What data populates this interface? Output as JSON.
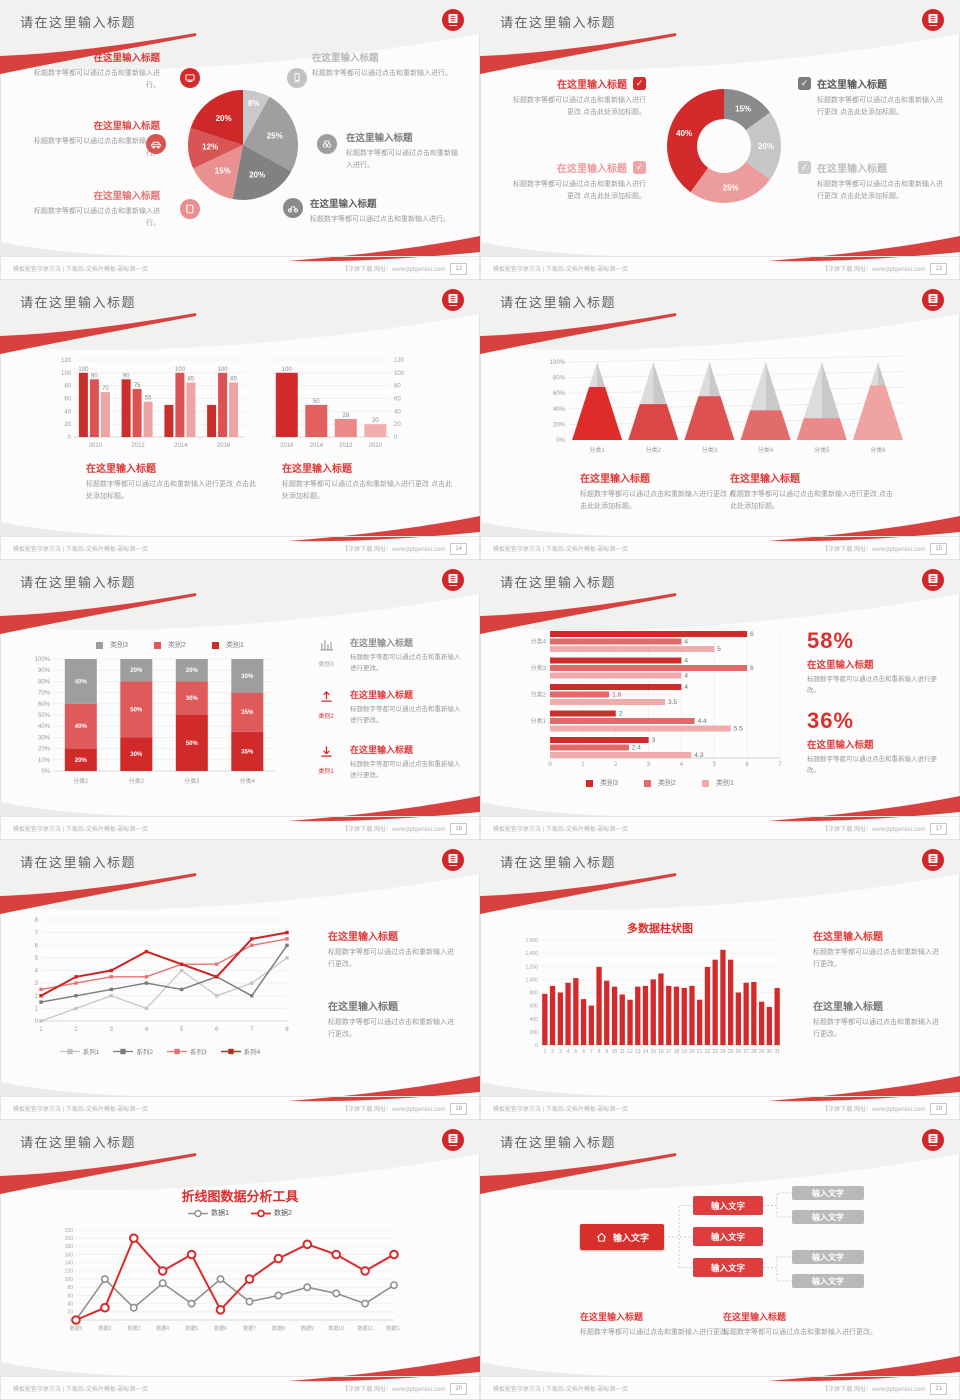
{
  "common": {
    "slide_title": "请在这里输入标题",
    "placeholder_title": "在这里输入标题",
    "footer_left": "模板配色字体方法 | 下载后-文档片模板-副标第一页",
    "footer_right": "【字体下载 网址：www.pptgenius.com",
    "accent_color": "#d32b2b"
  },
  "slides": [
    {
      "page_no": "12",
      "callouts_left": [
        {
          "icon": "monitor-icon",
          "title": "在这里输入标题",
          "body": "标题数字等都可以通过点击和重新输入进行。"
        },
        {
          "icon": "car-icon",
          "title": "在这里输入标题",
          "body": "标题数字等都可以通过点击和重新输入进行。"
        },
        {
          "icon": "book-icon",
          "title": "在这里输入标题",
          "body": "标题数字等都可以通过点击和重新输入进行。"
        }
      ],
      "callouts_right": [
        {
          "icon": "phone-icon",
          "title": "在这里输入标题",
          "body": "标题数字等都可以通过点击和重新输入进行。"
        },
        {
          "icon": "binoculars-icon",
          "title": "在这里输入标题",
          "body": "标题数字等都可以通过点击和重新输入进行。"
        },
        {
          "icon": "bicycle-icon",
          "title": "在这里输入标题",
          "body": "标题数字等都可以通过点击和重新输入进行。"
        }
      ],
      "chart_data": {
        "type": "pie",
        "labels": [
          "8%",
          "25%",
          "20%",
          "15%",
          "12%",
          "20%"
        ],
        "values": [
          8,
          25,
          20,
          15,
          12,
          20
        ],
        "colors": [
          "#c9c9c9",
          "#9f9f9f",
          "#818181",
          "#e99090",
          "#d95454",
          "#ce2828"
        ]
      }
    },
    {
      "page_no": "13",
      "items_left": [
        {
          "icon": "check-icon",
          "title": "在这里输入标题",
          "body": "标题数字等都可以通过点击和重新输入进行更改 点击此处添加标题。"
        },
        {
          "icon": "check-icon",
          "title": "在这里输入标题",
          "body": "标题数字等都可以通过点击和重新输入进行更改 点击此处添加标题。"
        }
      ],
      "items_right": [
        {
          "icon": "check-icon",
          "title": "在这里输入标题",
          "body": "标题数字等都可以通过点击和重新输入进行更改 点击此处添加标题。"
        },
        {
          "icon": "check-icon",
          "title": "在这里输入标题",
          "body": "标题数字等都可以通过点击和重新输入进行更改 点击此处添加标题。"
        }
      ],
      "chart_data": {
        "type": "donut",
        "labels": [
          "15%",
          "20%",
          "25%",
          "40%"
        ],
        "values": [
          15,
          20,
          25,
          40
        ],
        "colors": [
          "#8a8a8a",
          "#c6c6c6",
          "#ec9c9c",
          "#d32b2b"
        ]
      }
    },
    {
      "page_no": "14",
      "blocks": [
        {
          "title": "在这里输入标题",
          "body": "标题数字等都可以通过点击和重新输入进行更改 点击此处添加标题。"
        },
        {
          "title": "在这里输入标题",
          "body": "标题数字等都可以通过点击和重新输入进行更改 点击此处添加标题。"
        }
      ],
      "chart_data": [
        {
          "type": "bar-grouped",
          "categories": [
            "2010",
            "2012",
            "2014",
            "2016"
          ],
          "ymax": 120,
          "yticks": [
            "120",
            "100",
            "80",
            "60",
            "40",
            "20",
            "0"
          ],
          "series": [
            {
              "color": "#c9302c",
              "values": [
                100,
                90,
                50,
                50
              ],
              "labels": [
                "100",
                "90",
                "",
                ""
              ]
            },
            {
              "color": "#dd5252",
              "values": [
                90,
                75,
                100,
                100
              ],
              "labels": [
                "90",
                "75",
                "100",
                "100"
              ]
            },
            {
              "color": "#eda4a4",
              "values": [
                70,
                55,
                85,
                85
              ],
              "labels": [
                "70",
                "55",
                "85",
                "85"
              ]
            }
          ]
        },
        {
          "type": "bar",
          "categories": [
            "2016",
            "2014",
            "2012",
            "2010"
          ],
          "ymax": 120,
          "yticks": [
            "120",
            "100",
            "80",
            "60",
            "40",
            "20",
            "0"
          ],
          "values": [
            100,
            50,
            28,
            20
          ],
          "labels": [
            "100",
            "50",
            "28",
            "20"
          ],
          "colors": [
            "#d32b2b",
            "#e26060",
            "#eb8888",
            "#f2adad"
          ]
        }
      ]
    },
    {
      "page_no": "15",
      "blocks": [
        {
          "title": "在这里输入标题",
          "body": "标题数字等都可以通过点击和重新输入进行更改 点击此处添加标题。"
        },
        {
          "title": "在这里输入标题",
          "body": "标题数字等都可以通过点击和重新输入进行更改 点击此处添加标题。"
        }
      ],
      "chart_data": {
        "type": "pyramid",
        "categories": [
          "分类1",
          "分类2",
          "分类3",
          "分类4",
          "分类5",
          "分类6"
        ],
        "values_pct": [
          68,
          46,
          56,
          38,
          28,
          70
        ],
        "colors": [
          "#e02b2b",
          "#db4747",
          "#dd5151",
          "#e26c6c",
          "#ea8a8a",
          "#f0a3a3"
        ],
        "yticks": [
          "100%",
          "80%",
          "60%",
          "40%",
          "20%",
          "0%"
        ]
      }
    },
    {
      "page_no": "16",
      "items": [
        {
          "icon": "bar-chart-icon",
          "icon_label": "类别3",
          "title": "在这里输入标题",
          "body": "标题数字等都可以通过点击和重新输入进行更改。"
        },
        {
          "icon": "upload-icon",
          "icon_label": "类别2",
          "title": "在这里输入标题",
          "body": "标题数字等都可以通过点击和重新输入进行更改。"
        },
        {
          "icon": "download-icon",
          "icon_label": "类别1",
          "title": "在这里输入标题",
          "body": "标题数字等都可以通过点击和重新输入进行更改。"
        }
      ],
      "chart_data": {
        "type": "bar-stacked-100",
        "legend": [
          "类别3",
          "类别2",
          "类别1"
        ],
        "legend_colors": [
          "#9e9e9e",
          "#df5a5a",
          "#d02a2a"
        ],
        "categories": [
          "分类1",
          "分类2",
          "分类3",
          "分类4"
        ],
        "stacks": [
          [
            20,
            40,
            40
          ],
          [
            30,
            50,
            20
          ],
          [
            50,
            30,
            20
          ],
          [
            35,
            35,
            30
          ]
        ],
        "yticks": [
          "100%",
          "90%",
          "80%",
          "70%",
          "60%",
          "50%",
          "40%",
          "30%",
          "20%",
          "10%",
          "0%"
        ]
      }
    },
    {
      "page_no": "17",
      "stats": [
        {
          "pct": "58%",
          "title": "在这里输入标题",
          "body": "标题数字等都可以通过点击和重新输入进行更改。"
        },
        {
          "pct": "36%",
          "title": "在这里输入标题",
          "body": "标题数字等都可以通过点击和重新输入进行更改。"
        }
      ],
      "chart_data": {
        "type": "bar-horizontal",
        "legend": [
          "类别3",
          "类别2",
          "类别1"
        ],
        "legend_colors": [
          "#cf2b2b",
          "#e06a6a",
          "#f0abab"
        ],
        "categories": [
          "分类4",
          "分类3",
          "分类2",
          "分类1",
          ""
        ],
        "rows": [
          [
            6,
            4,
            5
          ],
          [
            4,
            6,
            4
          ],
          [
            4,
            1.8,
            3.5
          ],
          [
            2,
            4.4,
            5.5
          ],
          [
            3,
            2.4,
            4.3
          ]
        ],
        "xticks": [
          "0",
          "1",
          "2",
          "3",
          "4",
          "5",
          "6",
          "7"
        ],
        "xmax": 7
      }
    },
    {
      "page_no": "18",
      "blocks": [
        {
          "title": "在这里输入标题",
          "body": "标题数字等都可以通过点击和重新输入进行更改。"
        },
        {
          "title": "在这里输入标题",
          "body": "标题数字等都可以通过点击和重新输入进行更改。"
        }
      ],
      "chart_data": {
        "type": "line",
        "x": [
          "1",
          "2",
          "3",
          "4",
          "5",
          "6",
          "7",
          "8"
        ],
        "ymax": 8,
        "yticks": [
          "8",
          "7",
          "6",
          "5",
          "4",
          "3",
          "2",
          "1",
          "0"
        ],
        "series": [
          {
            "name": "系列1",
            "color": "#c3c3c3",
            "values": [
              0,
              1,
              2,
              1,
              4,
              2,
              3,
              5
            ]
          },
          {
            "name": "系列2",
            "color": "#7a7a7a",
            "values": [
              1.5,
              2,
              2.5,
              3,
              2.5,
              3.5,
              2,
              6
            ]
          },
          {
            "name": "系列3",
            "color": "#e57373",
            "values": [
              2.5,
              3,
              3.5,
              3.5,
              4.5,
              4.5,
              6,
              6.5
            ]
          },
          {
            "name": "系列4",
            "color": "#cf2222",
            "values": [
              2,
              3.5,
              4,
              5.5,
              4.5,
              3.5,
              6.5,
              7
            ]
          }
        ]
      }
    },
    {
      "page_no": "19",
      "blocks": [
        {
          "title": "在这里输入标题",
          "body": "标题数字等都可以通过点击和重新输入进行更改。"
        },
        {
          "title": "在这里输入标题",
          "body": "标题数字等都可以通过点击和重新输入进行更改。"
        }
      ],
      "chart_data": {
        "type": "bar",
        "title": "多数据柱状图",
        "color": "#d32b2b",
        "ymax": 1600,
        "yticks": [
          "1,600",
          "1,400",
          "1,200",
          "1,000",
          "800",
          "600",
          "400",
          "200",
          "0"
        ],
        "categories": [
          "1",
          "2",
          "3",
          "4",
          "5",
          "6",
          "7",
          "8",
          "9",
          "10",
          "11",
          "12",
          "13",
          "14",
          "15",
          "16",
          "17",
          "18",
          "19",
          "20",
          "21",
          "22",
          "23",
          "24",
          "25",
          "26",
          "27",
          "28",
          "29",
          "30",
          "31"
        ],
        "values": [
          780,
          900,
          800,
          950,
          1020,
          700,
          600,
          1190,
          980,
          890,
          770,
          690,
          890,
          900,
          1000,
          1090,
          900,
          890,
          870,
          900,
          690,
          1190,
          1300,
          1450,
          1300,
          800,
          950,
          960,
          660,
          580,
          870
        ]
      }
    },
    {
      "page_no": "20",
      "chart_data": {
        "type": "line",
        "title": "折线图数据分析工具",
        "ymax": 220,
        "yticks": [
          "220",
          "200",
          "180",
          "160",
          "140",
          "120",
          "100",
          "80",
          "60",
          "40",
          "20",
          "0"
        ],
        "x": [
          "数据1",
          "数据2",
          "数据3",
          "数据4",
          "数据5",
          "数据6",
          "数据7",
          "数据8",
          "数据9",
          "数据10",
          "数据11",
          "数据12"
        ],
        "series": [
          {
            "name": "数据1",
            "color": "#8f8f8f",
            "values": [
              0,
              100,
              30,
              90,
              40,
              100,
              45,
              60,
              80,
              65,
              40,
              85
            ]
          },
          {
            "name": "数据2",
            "color": "#d92b2b",
            "values": [
              0,
              30,
              200,
              120,
              160,
              25,
              100,
              150,
              185,
              160,
              120,
              160
            ]
          }
        ]
      }
    },
    {
      "page_no": "21",
      "diagram": {
        "root": "输入文字",
        "mid": [
          "输入文字",
          "输入文字",
          "输入文字"
        ],
        "leaves": [
          "输入文字",
          "输入文字",
          "输入文字",
          "输入文字"
        ]
      },
      "blocks": [
        {
          "title": "在这里输入标题",
          "body": "标题数字等都可以通过点击和重新输入进行更改。"
        },
        {
          "title": "在这里输入标题",
          "body": "标题数字等都可以通过点击和重新输入进行更改。"
        }
      ]
    }
  ]
}
